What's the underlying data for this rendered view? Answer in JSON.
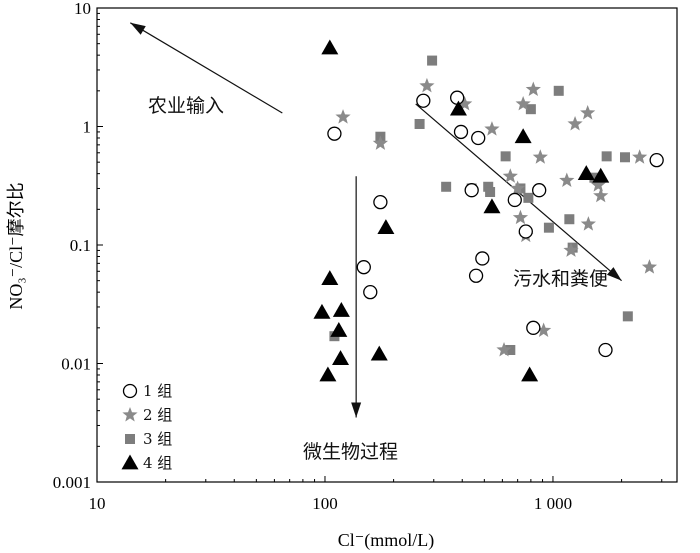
{
  "chart_data": {
    "type": "scatter",
    "x_scale": "log",
    "y_scale": "log",
    "xlim": [
      10,
      3500
    ],
    "ylim": [
      0.001,
      10
    ],
    "xlabel": "Cl⁻(mmol/L)",
    "ylabel": "NO₃⁻/Cl⁻摩尔比",
    "x_ticks": [
      {
        "v": 10,
        "label": "10"
      },
      {
        "v": 100,
        "label": "100"
      },
      {
        "v": 1000,
        "label": "1 000"
      }
    ],
    "y_ticks": [
      {
        "v": 10,
        "label": "10"
      },
      {
        "v": 1,
        "label": "1"
      },
      {
        "v": 0.1,
        "label": "0.1"
      },
      {
        "v": 0.01,
        "label": "0.01"
      },
      {
        "v": 0.001,
        "label": "0.001"
      }
    ],
    "grid": false,
    "legend_position": "bottom-left",
    "series": [
      {
        "name": "1 组",
        "marker": "circle-open",
        "color": "#000000",
        "points": [
          [
            110,
            0.87
          ],
          [
            175,
            0.23
          ],
          [
            148,
            0.065
          ],
          [
            158,
            0.04
          ],
          [
            380,
            1.75
          ],
          [
            395,
            0.9
          ],
          [
            440,
            0.29
          ],
          [
            470,
            0.8
          ],
          [
            460,
            0.055
          ],
          [
            490,
            0.077
          ],
          [
            680,
            0.24
          ],
          [
            760,
            0.13
          ],
          [
            870,
            0.29
          ],
          [
            820,
            0.02
          ],
          [
            1700,
            0.013
          ],
          [
            2850,
            0.52
          ],
          [
            270,
            1.65
          ]
        ]
      },
      {
        "name": "2 组",
        "marker": "star",
        "color": "#8a8a8a",
        "points": [
          [
            120,
            1.2
          ],
          [
            175,
            0.72
          ],
          [
            280,
            2.2
          ],
          [
            410,
            1.55
          ],
          [
            540,
            0.95
          ],
          [
            610,
            0.013
          ],
          [
            650,
            0.38
          ],
          [
            700,
            0.3
          ],
          [
            720,
            0.17
          ],
          [
            760,
            0.12
          ],
          [
            740,
            1.55
          ],
          [
            820,
            2.05
          ],
          [
            880,
            0.55
          ],
          [
            910,
            0.019
          ],
          [
            1150,
            0.35
          ],
          [
            1200,
            0.09
          ],
          [
            1250,
            1.05
          ],
          [
            1420,
            1.3
          ],
          [
            1580,
            0.32
          ],
          [
            1620,
            0.26
          ],
          [
            1430,
            0.15
          ],
          [
            2400,
            0.55
          ],
          [
            2650,
            0.065
          ]
        ]
      },
      {
        "name": "3 组",
        "marker": "square",
        "color": "#7d7d7d",
        "points": [
          [
            110,
            0.017
          ],
          [
            175,
            0.82
          ],
          [
            260,
            1.05
          ],
          [
            295,
            3.6
          ],
          [
            340,
            0.31
          ],
          [
            440,
            0.3
          ],
          [
            520,
            0.31
          ],
          [
            530,
            0.28
          ],
          [
            620,
            0.56
          ],
          [
            650,
            0.013
          ],
          [
            780,
            0.25
          ],
          [
            800,
            1.4
          ],
          [
            960,
            0.14
          ],
          [
            1060,
            2.0
          ],
          [
            1180,
            0.165
          ],
          [
            1220,
            0.095
          ],
          [
            1520,
            0.37
          ],
          [
            1720,
            0.56
          ],
          [
            2070,
            0.55
          ],
          [
            2130,
            0.025
          ],
          [
            720,
            0.3
          ]
        ]
      },
      {
        "name": "4 组",
        "marker": "triangle",
        "color": "#000000",
        "points": [
          [
            105,
            4.6
          ],
          [
            105,
            0.052
          ],
          [
            97,
            0.027
          ],
          [
            103,
            0.008
          ],
          [
            115,
            0.019
          ],
          [
            118,
            0.028
          ],
          [
            117,
            0.011
          ],
          [
            185,
            0.14
          ],
          [
            173,
            0.012
          ],
          [
            385,
            1.4
          ],
          [
            540,
            0.21
          ],
          [
            740,
            0.82
          ],
          [
            1400,
            0.4
          ],
          [
            1620,
            0.38
          ],
          [
            790,
            0.008
          ]
        ]
      }
    ],
    "annotations": [
      {
        "text": "农业输入",
        "arrow_from": [
          65,
          1.3
        ],
        "arrow_to": [
          14,
          7.5
        ]
      },
      {
        "text": "污水和粪便",
        "arrow_from": [
          250,
          1.55
        ],
        "arrow_to": [
          2000,
          0.05
        ]
      },
      {
        "text": "微生物过程",
        "arrow_from": [
          137,
          0.38
        ],
        "arrow_to": [
          137,
          0.0035
        ]
      }
    ]
  }
}
